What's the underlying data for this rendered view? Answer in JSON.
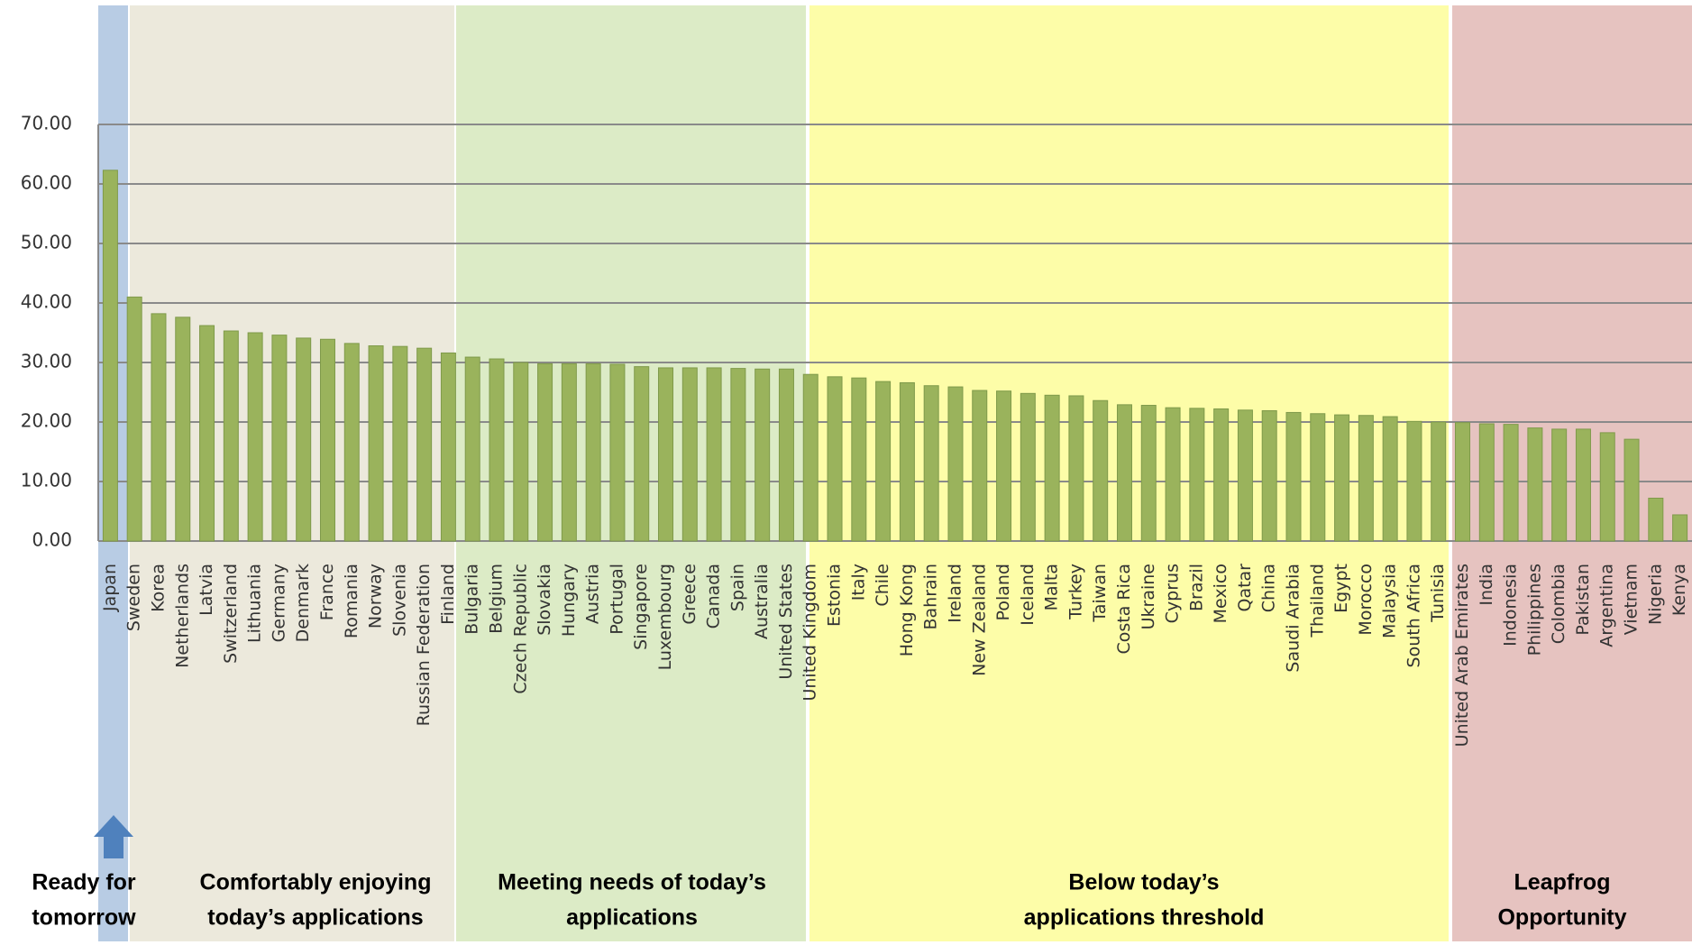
{
  "chart_data": {
    "type": "bar",
    "categories": [
      "Japan",
      "Sweden",
      "Korea",
      "Netherlands",
      "Latvia",
      "Switzerland",
      "Lithuania",
      "Germany",
      "Denmark",
      "France",
      "Romania",
      "Norway",
      "Slovenia",
      "Russian Federation",
      "Finland",
      "Bulgaria",
      "Belgium",
      "Czech Republic",
      "Slovakia",
      "Hungary",
      "Austria",
      "Portugal",
      "Singapore",
      "Luxembourg",
      "Greece",
      "Canada",
      "Spain",
      "Australia",
      "United States",
      "United Kingdom",
      "Estonia",
      "Italy",
      "Chile",
      "Hong Kong",
      "Bahrain",
      "Ireland",
      "New Zealand",
      "Poland",
      "Iceland",
      "Malta",
      "Turkey",
      "Taiwan",
      "Costa Rica",
      "Ukraine",
      "Cyprus",
      "Brazil",
      "Mexico",
      "Qatar",
      "China",
      "Saudi Arabia",
      "Thailand",
      "Egypt",
      "Morocco",
      "Malaysia",
      "South Africa",
      "Tunisia",
      "United Arab Emirates",
      "India",
      "Indonesia",
      "Philippines",
      "Colombia",
      "Pakistan",
      "Argentina",
      "Vietnam",
      "Nigeria",
      "Kenya"
    ],
    "values": [
      62.3,
      41,
      38.2,
      37.6,
      36.2,
      35.3,
      35,
      34.6,
      34.1,
      33.9,
      33.2,
      32.8,
      32.7,
      32.4,
      31.6,
      30.9,
      30.6,
      30,
      29.8,
      29.8,
      29.8,
      29.7,
      29.3,
      29.1,
      29.1,
      29.1,
      29,
      28.9,
      28.9,
      28,
      27.6,
      27.4,
      26.8,
      26.6,
      26.1,
      25.9,
      25.3,
      25.2,
      24.8,
      24.5,
      24.4,
      23.6,
      22.9,
      22.8,
      22.4,
      22.3,
      22.2,
      22,
      21.9,
      21.6,
      21.4,
      21.2,
      21.1,
      20.9,
      20.1,
      20,
      19.9,
      19.7,
      19.6,
      19,
      18.8,
      18.8,
      18.2,
      17.1,
      7.2,
      4.4
    ],
    "color": "#9ab35c",
    "ylim": [
      0,
      70
    ],
    "yticks": [
      {
        "value": 0,
        "label": "0.00"
      },
      {
        "value": 10,
        "label": "10.00"
      },
      {
        "value": 20,
        "label": "20.00"
      },
      {
        "value": 30,
        "label": "30.00"
      },
      {
        "value": 40,
        "label": "40.00"
      },
      {
        "value": 50,
        "label": "50.00"
      },
      {
        "value": 60,
        "label": "60.00"
      },
      {
        "value": 70,
        "label": "70.00"
      }
    ],
    "grid": true,
    "annotations": [
      [
        "Ready for",
        "tomorrow"
      ],
      [
        "Comfortably enjoying",
        "today’s applications"
      ],
      [
        "Meeting needs of today’s",
        "applications"
      ],
      [
        "Below today’s",
        "applications threshold"
      ],
      [
        "Leapfrog",
        "Opportunity"
      ]
    ]
  }
}
